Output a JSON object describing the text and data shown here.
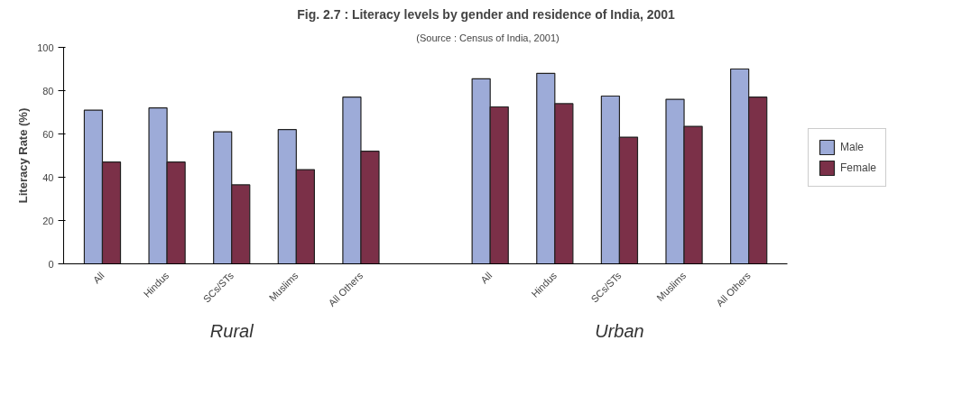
{
  "chart_data": {
    "type": "bar",
    "title": "Fig. 2.7 :  Literacy levels by gender and residence of India, 2001",
    "subtitle": "(Source : Census of India, 2001)",
    "ylabel": "Literacy Rate (%)",
    "categories": [
      "All",
      "Hindus",
      "SCs/STs",
      "Muslims",
      "All Others",
      null,
      "All",
      "Hindus",
      "SCs/STs",
      "Muslims",
      "All Others"
    ],
    "series": [
      {
        "name": "Male",
        "color": "#9dabd8",
        "values": [
          71,
          72,
          61,
          62,
          77,
          null,
          85.5,
          88,
          77.5,
          76,
          90
        ]
      },
      {
        "name": "Female",
        "color": "#7b3048",
        "values": [
          47,
          47,
          36.5,
          43.5,
          52,
          null,
          72.5,
          74,
          58.5,
          63.5,
          77
        ]
      }
    ],
    "ylim": [
      0,
      100
    ],
    "yticks": [
      0,
      20,
      40,
      60,
      80,
      100
    ],
    "grid": false,
    "legend": "right",
    "annotations": [
      "Rural",
      "Urban"
    ]
  }
}
